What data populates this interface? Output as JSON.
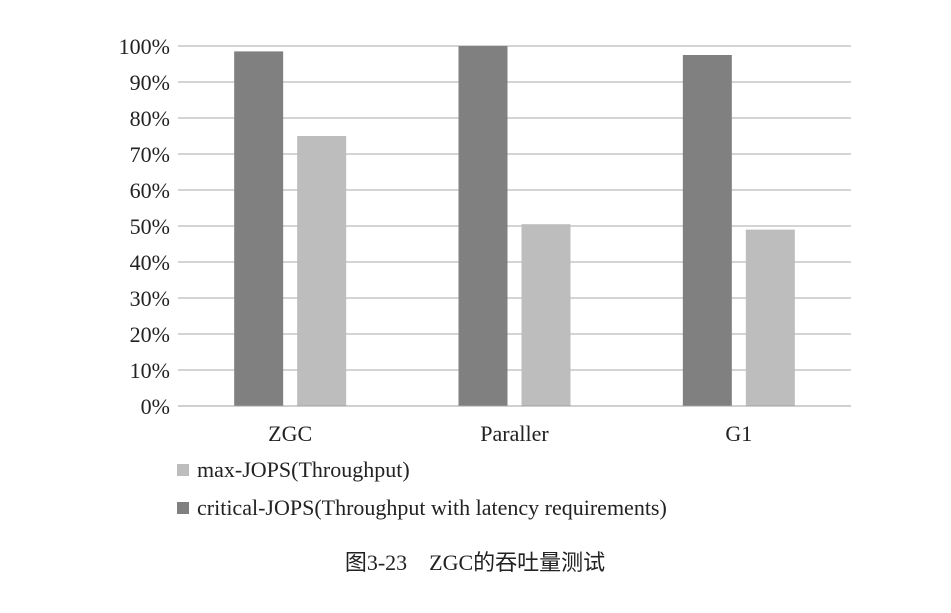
{
  "chart_data": {
    "type": "bar",
    "categories": [
      "ZGC",
      "Paraller",
      "G1"
    ],
    "series": [
      {
        "name": "critical-JOPS(Throughput with latency requirements)",
        "values": [
          98.5,
          100,
          97.5
        ],
        "color": "#808080"
      },
      {
        "name": "max-JOPS(Throughput)",
        "values": [
          75,
          50.5,
          49
        ],
        "color": "#bdbdbd"
      }
    ],
    "legend_order": [
      1,
      0
    ],
    "ylim": [
      0,
      100
    ],
    "yticks": [
      0,
      10,
      20,
      30,
      40,
      50,
      60,
      70,
      80,
      90,
      100
    ],
    "ytick_labels": [
      "0%",
      "10%",
      "20%",
      "30%",
      "40%",
      "50%",
      "60%",
      "70%",
      "80%",
      "90%",
      "100%"
    ],
    "grid": true,
    "legend_position": "bottom",
    "caption": "图3-23　ZGC的吞吐量测试"
  }
}
